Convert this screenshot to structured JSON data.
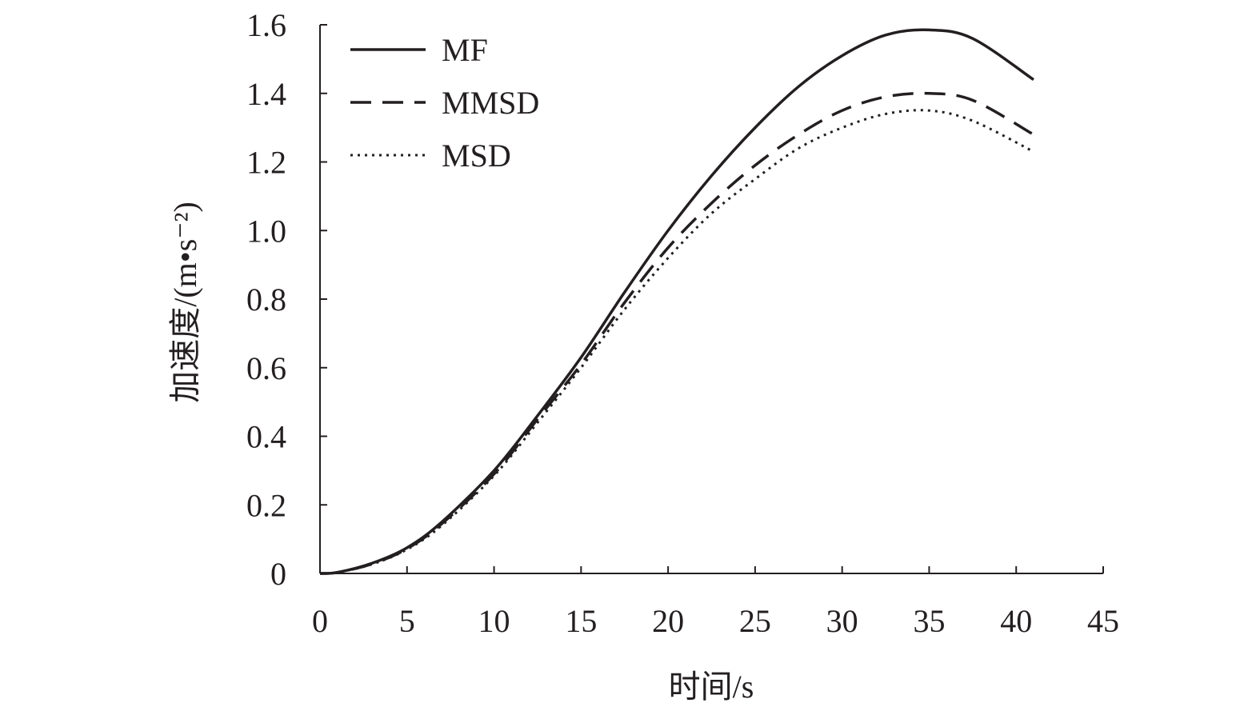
{
  "chart_data": {
    "type": "line",
    "title": "",
    "xlabel": "时间/s",
    "ylabel": "加速度/(m•s⁻²)",
    "xlim": [
      0,
      45
    ],
    "ylim": [
      0,
      1.6
    ],
    "xticks": [
      "0",
      "5",
      "10",
      "15",
      "20",
      "25",
      "30",
      "35",
      "40",
      "45"
    ],
    "yticks": [
      "0",
      "0.2",
      "0.4",
      "0.6",
      "0.8",
      "1.0",
      "1.2",
      "1.4",
      "1.6"
    ],
    "grid": false,
    "legend_position": "top-left",
    "x": [
      0,
      1,
      3,
      5,
      7,
      10,
      12.5,
      15,
      17.5,
      20,
      22.5,
      25,
      27.5,
      30,
      32.5,
      35,
      37.5,
      41
    ],
    "series": [
      {
        "name": "MF",
        "style": "solid",
        "values": [
          0,
          0.003,
          0.03,
          0.075,
          0.15,
          0.3,
          0.46,
          0.63,
          0.82,
          1.0,
          1.16,
          1.3,
          1.42,
          1.51,
          1.57,
          1.585,
          1.56,
          1.44
        ]
      },
      {
        "name": "MMSD",
        "style": "dashed",
        "values": [
          0,
          0.003,
          0.028,
          0.072,
          0.145,
          0.29,
          0.45,
          0.61,
          0.79,
          0.95,
          1.08,
          1.19,
          1.28,
          1.35,
          1.39,
          1.4,
          1.38,
          1.28
        ]
      },
      {
        "name": "MSD",
        "style": "dotted",
        "values": [
          0,
          0.003,
          0.027,
          0.07,
          0.14,
          0.285,
          0.44,
          0.6,
          0.77,
          0.92,
          1.05,
          1.15,
          1.24,
          1.3,
          1.34,
          1.35,
          1.32,
          1.23
        ]
      }
    ],
    "line_color": "#231f20"
  }
}
